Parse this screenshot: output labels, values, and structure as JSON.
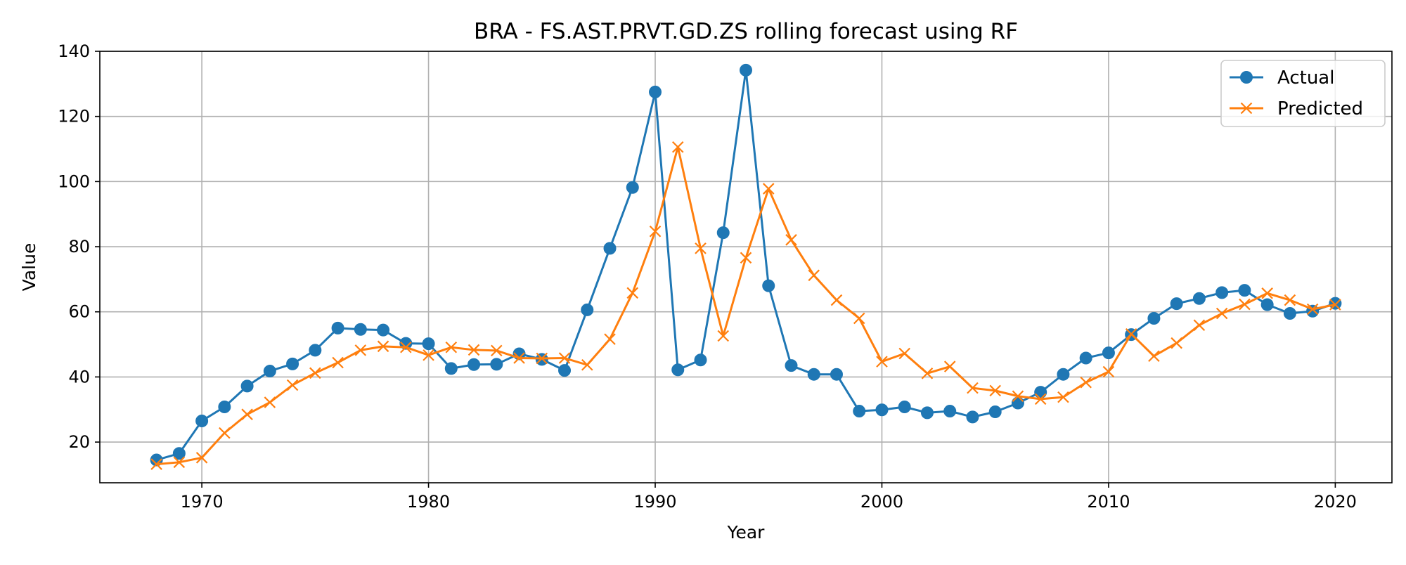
{
  "chart_data": {
    "type": "line",
    "title": "BRA - FS.AST.PRVT.GD.ZS rolling forecast using RF",
    "xlabel": "Year",
    "ylabel": "Value",
    "xlim": [
      1965.5,
      2022.5
    ],
    "ylim": [
      7.5,
      140
    ],
    "xticks": [
      1970,
      1980,
      1990,
      2000,
      2010,
      2020
    ],
    "yticks": [
      20,
      40,
      60,
      80,
      100,
      120,
      140
    ],
    "grid": true,
    "legend_position": "top-right",
    "x": [
      1968,
      1969,
      1970,
      1971,
      1972,
      1973,
      1974,
      1975,
      1976,
      1977,
      1978,
      1979,
      1980,
      1981,
      1982,
      1983,
      1984,
      1985,
      1986,
      1987,
      1988,
      1989,
      1990,
      1991,
      1992,
      1993,
      1994,
      1995,
      1996,
      1997,
      1998,
      1999,
      2000,
      2001,
      2002,
      2003,
      2004,
      2005,
      2006,
      2007,
      2008,
      2009,
      2010,
      2011,
      2012,
      2013,
      2014,
      2015,
      2016,
      2017,
      2018,
      2019,
      2020
    ],
    "series": [
      {
        "name": "Actual",
        "color": "#1f77b4",
        "marker": "circle",
        "values": [
          14.5,
          16.5,
          26.5,
          30.8,
          37.2,
          41.8,
          44.0,
          48.2,
          55.0,
          54.6,
          54.4,
          50.3,
          50.2,
          42.6,
          43.8,
          43.9,
          47.1,
          45.4,
          42.0,
          60.6,
          79.5,
          98.2,
          127.5,
          42.2,
          45.2,
          84.3,
          134.2,
          68.0,
          43.5,
          40.8,
          40.8,
          29.5,
          29.9,
          30.8,
          29.0,
          29.5,
          27.7,
          29.3,
          32.0,
          35.3,
          40.8,
          45.8,
          47.4,
          53.0,
          58.0,
          62.5,
          64.1,
          65.9,
          66.6,
          62.2,
          59.5,
          60.2,
          62.6
        ]
      },
      {
        "name": "Predicted",
        "color": "#ff7f0e",
        "marker": "x",
        "values": [
          13.2,
          13.8,
          15.2,
          22.8,
          28.5,
          32.2,
          37.5,
          41.2,
          44.4,
          48.2,
          49.4,
          49.1,
          46.7,
          49.1,
          48.3,
          48.1,
          45.8,
          45.7,
          45.8,
          43.7,
          51.6,
          65.8,
          84.7,
          110.6,
          79.5,
          52.6,
          76.6,
          97.8,
          82.1,
          71.2,
          63.6,
          58.0,
          44.7,
          47.2,
          41.1,
          43.2,
          36.6,
          35.8,
          34.1,
          33.2,
          33.8,
          38.3,
          41.6,
          53.2,
          46.4,
          50.4,
          55.9,
          59.5,
          62.3,
          65.7,
          63.6,
          60.8,
          62.2
        ]
      }
    ]
  }
}
